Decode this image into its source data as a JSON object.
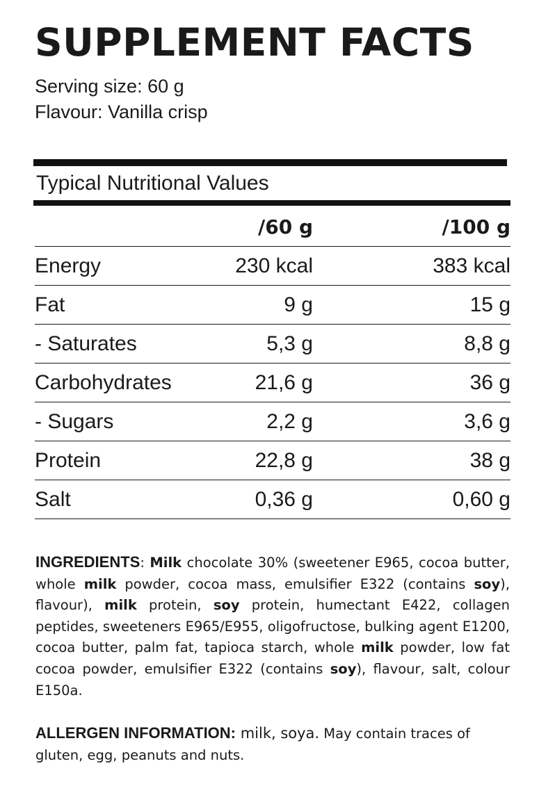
{
  "title": "SUPPLEMENT FACTS",
  "serving": "Serving size: 60 g",
  "flavour": "Flavour: Vanilla crisp",
  "table": {
    "title": "Typical Nutritional Values",
    "columns": [
      "",
      "/60 g",
      "/100 g"
    ],
    "rows": [
      {
        "label": "Energy",
        "per60": "230 kcal",
        "per100": "383 kcal"
      },
      {
        "label": "Fat",
        "per60": "9 g",
        "per100": "15 g"
      },
      {
        "label": "- Saturates",
        "per60": "5,3 g",
        "per100": "8,8 g"
      },
      {
        "label": "Carbohydrates",
        "per60": "21,6 g",
        "per100": "36 g"
      },
      {
        "label": "- Sugars",
        "per60": "2,2 g",
        "per100": "3,6 g"
      },
      {
        "label": "Protein",
        "per60": "22,8 g",
        "per100": "38 g"
      },
      {
        "label": "Salt",
        "per60": "0,36 g",
        "per100": "0,60 g"
      }
    ]
  },
  "ingredients": {
    "heading": "INGREDIENTS",
    "segments": [
      {
        "text": "INGREDIENTS",
        "style": "lead"
      },
      {
        "text": ": ",
        "style": "normal"
      },
      {
        "text": "Milk",
        "style": "bold"
      },
      {
        "text": " chocolate 30% (sweetener E965, cocoa butter, whole ",
        "style": "normal"
      },
      {
        "text": "milk",
        "style": "bold"
      },
      {
        "text": " powder, cocoa mass, emulsifier E322 (contains ",
        "style": "normal"
      },
      {
        "text": "soy",
        "style": "bold"
      },
      {
        "text": "), flavour), ",
        "style": "normal"
      },
      {
        "text": "milk",
        "style": "bold"
      },
      {
        "text": " protein, ",
        "style": "normal"
      },
      {
        "text": "soy",
        "style": "bold"
      },
      {
        "text": " protein, humectant E422, collagen peptides, sweeteners E965/E955, oligofructose, bulking agent E1200, cocoa butter, palm fat, tapioca starch, whole ",
        "style": "normal"
      },
      {
        "text": "milk",
        "style": "bold"
      },
      {
        "text": " powder, low fat cocoa powder, emulsifier E322 (contains ",
        "style": "normal"
      },
      {
        "text": "soy",
        "style": "bold"
      },
      {
        "text": "), flavour, salt, colour E150a.",
        "style": "normal"
      }
    ]
  },
  "allergen": {
    "heading": "ALLERGEN INFORMATION:",
    "allergens": " milk, soya.",
    "traces": " May contain traces of gluten, egg, peanuts and nuts."
  }
}
